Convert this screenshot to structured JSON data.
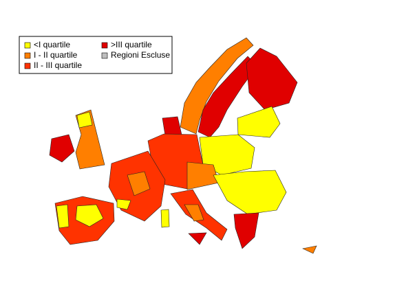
{
  "legend": {
    "items": [
      {
        "label": "<I quartile",
        "color": "#ffff00"
      },
      {
        "label": "I - II quartile",
        "color": "#ff7f00"
      },
      {
        "label": "II - III quartile",
        "color": "#ff3300"
      },
      {
        "label": ">III quartile",
        "color": "#e00000"
      },
      {
        "label": "Regioni Escluse",
        "color": "#bebebe"
      }
    ]
  }
}
